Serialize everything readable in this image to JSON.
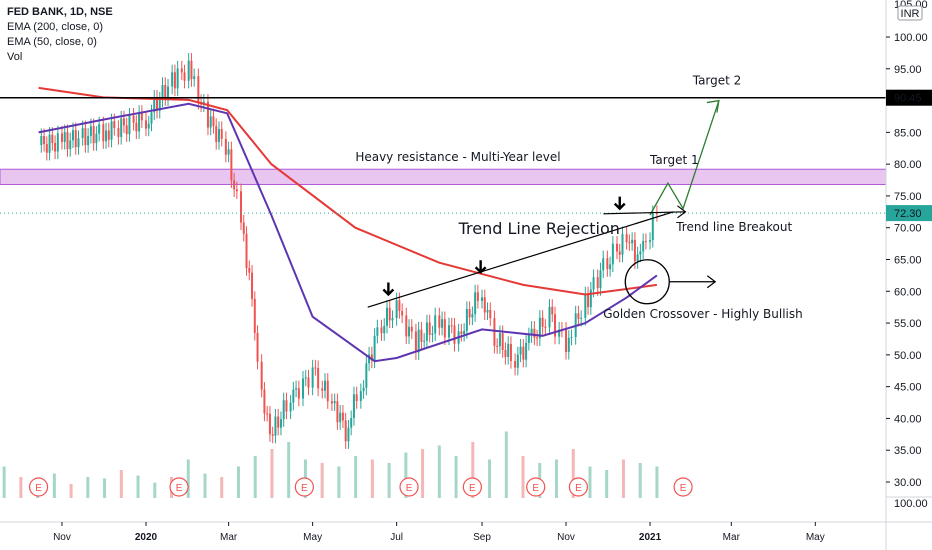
{
  "legend": {
    "title": "FED BANK, 1D, NSE",
    "line2": "EMA (200, close, 0)",
    "line3": "EMA (50, close, 0)",
    "line4": "Vol"
  },
  "currency_badge": "INR",
  "price_marker": "72.30",
  "level_marker": "90.45",
  "events_glyph": "E",
  "chart_data": {
    "type": "candlestick",
    "title": "FED BANK, 1D, NSE",
    "ylim": [
      28,
      105
    ],
    "y_ticks": [
      "30.00",
      "35.00",
      "40.00",
      "45.00",
      "50.00",
      "55.00",
      "60.00",
      "65.00",
      "70.00",
      "75.00",
      "80.00",
      "85.00",
      "90.00",
      "95.00",
      "100.00"
    ],
    "y_tick_values": [
      30,
      35,
      40,
      45,
      50,
      55,
      60,
      65,
      70,
      75,
      80,
      85,
      90,
      95,
      100
    ],
    "top_tick_partial": "105.00",
    "volume_axis_label": "100.00",
    "x_ticks": [
      "Nov",
      "2020",
      "Mar",
      "May",
      "Jul",
      "Sep",
      "Nov",
      "2021",
      "Mar",
      "May"
    ],
    "x_tick_months": [
      "2019-11",
      "2020-01",
      "2020-03",
      "2020-05",
      "2020-07",
      "2020-09",
      "2020-11",
      "2021-01",
      "2021-03",
      "2021-05"
    ],
    "bold_x_ticks": [
      "2020",
      "2021"
    ],
    "last_price": 72.3,
    "horizontal_level": 90.45,
    "resistance_zone": [
      76.8,
      79.2
    ],
    "close_series": [
      [
        "2019-10-15",
        83
      ],
      [
        "2019-11-01",
        83.5
      ],
      [
        "2019-12-01",
        85
      ],
      [
        "2020-01-01",
        87
      ],
      [
        "2020-01-20",
        93
      ],
      [
        "2020-02-01",
        95
      ],
      [
        "2020-02-15",
        87
      ],
      [
        "2020-02-28",
        83
      ],
      [
        "2020-03-10",
        72
      ],
      [
        "2020-03-20",
        55
      ],
      [
        "2020-03-25",
        45
      ],
      [
        "2020-03-31",
        37
      ],
      [
        "2020-04-15",
        43
      ],
      [
        "2020-05-01",
        47
      ],
      [
        "2020-05-15",
        43
      ],
      [
        "2020-05-25",
        38
      ],
      [
        "2020-06-05",
        45
      ],
      [
        "2020-06-20",
        55
      ],
      [
        "2020-07-01",
        57
      ],
      [
        "2020-07-15",
        52
      ],
      [
        "2020-08-01",
        55
      ],
      [
        "2020-08-15",
        53
      ],
      [
        "2020-09-01",
        60
      ],
      [
        "2020-09-10",
        53
      ],
      [
        "2020-09-25",
        49
      ],
      [
        "2020-10-05",
        52
      ],
      [
        "2020-10-20",
        56
      ],
      [
        "2020-11-01",
        52
      ],
      [
        "2020-11-15",
        58
      ],
      [
        "2020-12-01",
        65
      ],
      [
        "2020-12-15",
        68
      ],
      [
        "2020-12-25",
        65
      ],
      [
        "2021-01-06",
        72.3
      ]
    ],
    "series": [
      {
        "name": "EMA (200, close, 0)",
        "color": "#e53935",
        "points": [
          [
            "2019-10-15",
            92
          ],
          [
            "2019-12-01",
            90.5
          ],
          [
            "2020-02-01",
            90.1
          ],
          [
            "2020-02-29",
            88.5
          ],
          [
            "2020-04-01",
            80
          ],
          [
            "2020-06-01",
            70
          ],
          [
            "2020-08-01",
            64.5
          ],
          [
            "2020-10-01",
            61
          ],
          [
            "2020-11-15",
            59.5
          ],
          [
            "2021-01-06",
            61
          ]
        ]
      },
      {
        "name": "EMA (50, close, 0)",
        "color": "#5e35b1",
        "points": [
          [
            "2019-10-15",
            85
          ],
          [
            "2019-12-01",
            87
          ],
          [
            "2020-02-01",
            89.5
          ],
          [
            "2020-02-29",
            88
          ],
          [
            "2020-04-01",
            72
          ],
          [
            "2020-05-01",
            56
          ],
          [
            "2020-06-15",
            49
          ],
          [
            "2020-07-01",
            49.5
          ],
          [
            "2020-09-01",
            54
          ],
          [
            "2020-10-15",
            53
          ],
          [
            "2020-11-15",
            55
          ],
          [
            "2020-12-15",
            59
          ],
          [
            "2021-01-06",
            62.5
          ]
        ]
      }
    ],
    "volume": {
      "scale": "relative",
      "bars": [
        0.45,
        0.3,
        0.25,
        0.35,
        0.2,
        0.3,
        0.28,
        0.4,
        0.32,
        0.22,
        0.3,
        0.55,
        0.35,
        0.3,
        0.45,
        0.6,
        0.7,
        0.8,
        0.55,
        0.5,
        0.45,
        0.6,
        0.55,
        0.5,
        0.65,
        0.7,
        0.75,
        0.6,
        0.8,
        0.55,
        0.95,
        0.6,
        0.5,
        0.55,
        0.7,
        0.45,
        0.4,
        0.55,
        0.5,
        0.45
      ]
    },
    "annotations": [
      {
        "text": "Heavy resistance - Multi-Year level",
        "date": "2020-06-01",
        "price": 80.5,
        "size": 12
      },
      {
        "text": "Target 2",
        "date": "2021-02-01",
        "price": 92.5,
        "size": 12
      },
      {
        "text": "Target 1",
        "date": "2021-01-01",
        "price": 80,
        "size": 12
      },
      {
        "text": "Trend Line Rejection",
        "date": "2020-08-15",
        "price": 69,
        "size": 16
      },
      {
        "text": "Trend line Breakout",
        "date": "2021-01-20",
        "price": 69.5,
        "size": 12
      },
      {
        "text": "Golden Crossover - Highly Bullish",
        "date": "2020-11-28",
        "price": 55.8,
        "size": 12
      }
    ],
    "trend_line": [
      [
        "2020-06-10",
        57.5
      ],
      [
        "2021-01-18",
        72.5
      ]
    ],
    "target_path": [
      [
        "2021-01-01",
        72
      ],
      [
        "2021-01-14",
        77
      ],
      [
        "2021-01-25",
        73
      ],
      [
        "2021-02-20",
        90
      ]
    ],
    "down_arrows": [
      [
        "2020-06-25",
        59.5
      ],
      [
        "2020-08-31",
        63
      ],
      [
        "2020-12-10",
        73
      ]
    ],
    "golden_cross_circle": [
      "2020-12-30",
      61.5
    ],
    "events_dates": [
      "2019-10-15",
      "2020-01-25",
      "2020-04-25",
      "2020-07-10",
      "2020-08-25",
      "2020-10-10",
      "2020-11-10",
      "2021-01-25"
    ]
  }
}
